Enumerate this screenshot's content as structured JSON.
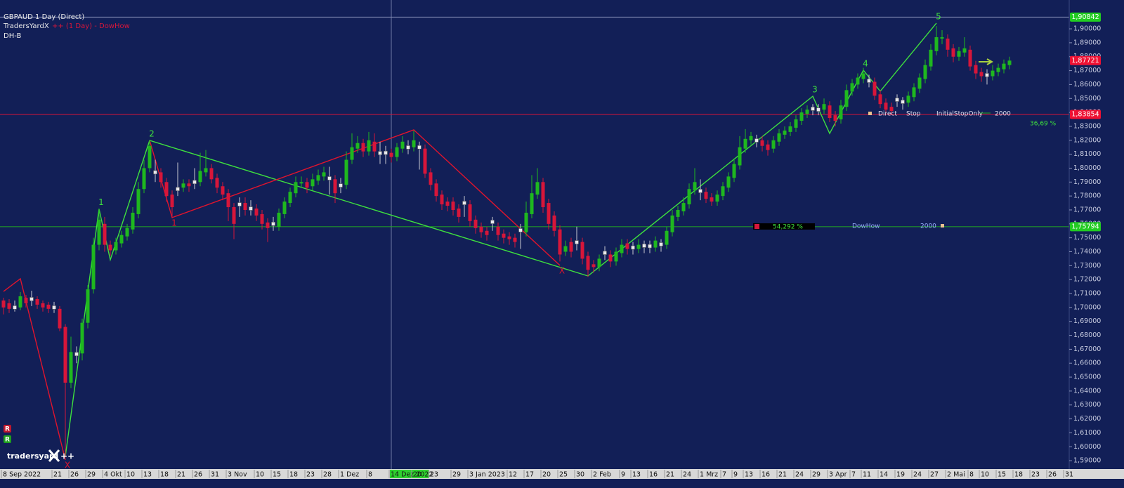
{
  "chart_data": {
    "type": "candlestick",
    "title": "GBPAUD 1 Day (Direct)",
    "indicator_name": "TradersYardX",
    "indicator_settings": "++ (1 Day) - DowHow",
    "subtitle": "DH-B",
    "logo": "tradersyard",
    "logo_mark": "++",
    "markers": [
      "R",
      "R"
    ],
    "categories": [
      "8 Sep 2022",
      null,
      null,
      null,
      null,
      null,
      null,
      null,
      null,
      "21",
      null,
      null,
      "26",
      null,
      null,
      "29",
      null,
      null,
      "4 Okt",
      null,
      null,
      null,
      "10",
      null,
      null,
      "13",
      null,
      null,
      "18",
      null,
      null,
      "21",
      null,
      null,
      "26",
      null,
      null,
      "31",
      null,
      null,
      "3 Nov",
      null,
      null,
      null,
      null,
      "10",
      null,
      null,
      "15",
      null,
      null,
      "18",
      null,
      null,
      "23",
      null,
      null,
      "28",
      null,
      null,
      "1 Dez",
      null,
      null,
      null,
      null,
      "8",
      null,
      null,
      null,
      "14 Dez 2022",
      null,
      null,
      null,
      "20",
      null,
      null,
      "23",
      null,
      null,
      null,
      "29",
      null,
      null,
      "3 Jan 2023",
      null,
      null,
      null,
      null,
      null,
      null,
      "12",
      null,
      null,
      "17",
      null,
      null,
      "20",
      null,
      null,
      "25",
      null,
      null,
      "30",
      null,
      null,
      "2 Feb",
      null,
      null,
      null,
      null,
      "9",
      null,
      "13",
      null,
      null,
      "16",
      null,
      null,
      "21",
      null,
      null,
      "24",
      null,
      null,
      "1 Mrz",
      null,
      null,
      null,
      "7",
      null,
      "9",
      null,
      "13",
      null,
      null,
      "16",
      null,
      null,
      "21",
      null,
      null,
      "24",
      null,
      null,
      "29",
      null,
      null,
      "3 Apr",
      null,
      null,
      null,
      "7",
      null,
      "11",
      null,
      null,
      "14",
      null,
      null,
      "19",
      null,
      null,
      "24",
      null,
      null,
      "27",
      null,
      null,
      "2 Mai",
      null,
      null,
      null,
      "8",
      null,
      "10",
      null,
      null,
      "15",
      null,
      null,
      "18",
      null,
      null,
      "23",
      null,
      null,
      "26",
      null,
      null,
      "31"
    ],
    "open": [
      1.705,
      1.703,
      1.7,
      1.7,
      1.707,
      1.706,
      1.706,
      1.703,
      1.702,
      1.7,
      1.699,
      1.686,
      1.646,
      1.6665,
      1.667,
      1.689,
      1.713,
      1.745,
      1.76,
      1.745,
      1.741,
      1.746,
      1.751,
      1.756,
      1.767,
      1.785,
      1.8,
      1.797,
      1.797,
      1.79,
      1.781,
      1.785,
      1.786,
      1.789,
      1.79,
      1.79,
      1.797,
      1.8,
      1.793,
      1.787,
      1.782,
      1.772,
      1.774,
      1.775,
      1.771,
      1.771,
      1.767,
      1.761,
      1.76,
      1.758,
      1.767,
      1.775,
      1.782,
      1.789,
      1.79,
      1.787,
      1.791,
      1.794,
      1.7927,
      1.792,
      1.7876,
      1.788,
      1.806,
      1.814,
      1.818,
      1.812,
      1.819,
      1.8108,
      1.811,
      1.811,
      1.808,
      1.814,
      1.8149,
      1.815,
      1.815,
      1.814,
      1.797,
      1.789,
      1.781,
      1.776,
      1.776,
      1.771,
      1.775,
      1.774,
      1.763,
      1.758,
      1.755,
      1.7614,
      1.758,
      1.753,
      1.751,
      1.75,
      1.7554,
      1.754,
      1.767,
      1.781,
      1.79,
      1.775,
      1.766,
      1.756,
      1.74,
      1.747,
      1.7468,
      1.747,
      1.737,
      1.731,
      1.729,
      1.7392,
      1.738,
      1.733,
      1.739,
      1.746,
      1.743,
      1.742,
      1.7443,
      1.744,
      1.743,
      1.7453,
      1.745,
      1.754,
      1.765,
      1.769,
      1.774,
      1.784,
      1.7836,
      1.783,
      1.779,
      1.776,
      1.78,
      1.786,
      1.793,
      1.802,
      1.814,
      1.82,
      1.8199,
      1.82,
      1.817,
      1.814,
      1.819,
      1.824,
      1.826,
      1.829,
      1.834,
      1.839,
      1.8426,
      1.842,
      1.842,
      1.845,
      1.838,
      1.835,
      1.844,
      1.855,
      1.86,
      1.864,
      1.8627,
      1.862,
      1.853,
      1.847,
      1.844,
      1.8491,
      1.8476,
      1.847,
      1.851,
      1.857,
      1.864,
      1.873,
      1.884,
      1.893,
      1.893,
      1.886,
      1.88,
      1.883,
      1.885,
      1.874,
      1.869,
      1.8668,
      1.866,
      1.869,
      1.871,
      1.874,
      null,
      null,
      null,
      null,
      null,
      null,
      null,
      null,
      null,
      null
    ],
    "high": [
      1.707,
      1.706,
      1.705,
      1.711,
      1.709,
      1.712,
      1.708,
      1.705,
      1.704,
      1.704,
      1.701,
      1.688,
      1.679,
      1.672,
      1.692,
      1.716,
      1.75,
      1.771,
      1.765,
      1.748,
      1.75,
      1.755,
      1.76,
      1.772,
      1.79,
      1.806,
      1.82,
      1.806,
      1.8,
      1.793,
      1.784,
      1.804,
      1.792,
      1.792,
      1.8,
      1.811,
      1.813,
      1.803,
      1.796,
      1.79,
      1.785,
      1.775,
      1.779,
      1.779,
      1.777,
      1.774,
      1.77,
      1.764,
      1.765,
      1.771,
      1.779,
      1.786,
      1.794,
      1.794,
      1.793,
      1.796,
      1.799,
      1.801,
      1.801,
      1.795,
      1.793,
      1.812,
      1.825,
      1.823,
      1.821,
      1.826,
      1.825,
      1.819,
      1.816,
      1.814,
      1.818,
      1.823,
      1.82,
      1.827,
      1.819,
      1.817,
      1.8,
      1.792,
      1.784,
      1.779,
      1.779,
      1.774,
      1.78,
      1.777,
      1.766,
      1.761,
      1.758,
      1.765,
      1.761,
      1.756,
      1.754,
      1.753,
      1.76,
      1.776,
      1.795,
      1.8,
      1.793,
      1.778,
      1.769,
      1.759,
      1.748,
      1.75,
      1.758,
      1.75,
      1.74,
      1.734,
      1.738,
      1.744,
      1.741,
      1.743,
      1.749,
      1.749,
      1.747,
      1.749,
      1.748,
      1.748,
      1.751,
      1.749,
      1.758,
      1.77,
      1.773,
      1.779,
      1.789,
      1.8,
      1.792,
      1.786,
      1.782,
      1.784,
      1.79,
      1.797,
      1.807,
      1.823,
      1.828,
      1.826,
      1.824,
      1.823,
      1.82,
      1.823,
      1.828,
      1.83,
      1.833,
      1.838,
      1.843,
      1.845,
      1.846,
      1.846,
      1.85,
      1.848,
      1.841,
      1.849,
      1.86,
      1.864,
      1.868,
      1.872,
      1.867,
      1.865,
      1.856,
      1.85,
      1.847,
      1.853,
      1.851,
      1.855,
      1.861,
      1.868,
      1.878,
      1.889,
      1.902,
      1.899,
      1.896,
      1.889,
      1.887,
      1.894,
      1.888,
      1.877,
      1.872,
      1.871,
      1.874,
      1.875,
      1.878,
      1.88,
      null,
      null,
      null,
      null,
      null,
      null,
      null,
      null,
      null,
      null
    ],
    "low": [
      1.695,
      1.696,
      1.697,
      1.698,
      1.7,
      1.701,
      1.699,
      1.697,
      1.696,
      1.696,
      1.683,
      1.5935,
      1.642,
      1.66,
      1.662,
      1.685,
      1.71,
      1.741,
      1.74,
      1.737,
      1.738,
      1.743,
      1.748,
      1.753,
      1.764,
      1.782,
      1.797,
      1.79,
      1.786,
      1.776,
      1.764,
      1.78,
      1.783,
      1.783,
      1.785,
      1.787,
      1.794,
      1.789,
      1.782,
      1.777,
      1.762,
      1.749,
      1.765,
      1.766,
      1.766,
      1.762,
      1.756,
      1.747,
      1.755,
      1.755,
      1.764,
      1.772,
      1.779,
      1.786,
      1.782,
      1.784,
      1.788,
      1.791,
      1.781,
      1.775,
      1.782,
      1.785,
      1.803,
      1.811,
      1.808,
      1.809,
      1.808,
      1.803,
      1.803,
      1.804,
      1.805,
      1.811,
      1.81,
      1.812,
      1.799,
      1.793,
      1.784,
      1.776,
      1.77,
      1.769,
      1.766,
      1.761,
      1.765,
      1.758,
      1.753,
      1.75,
      1.748,
      1.755,
      1.748,
      1.746,
      1.745,
      1.743,
      1.742,
      1.751,
      1.764,
      1.778,
      1.768,
      1.756,
      1.751,
      1.733,
      1.737,
      1.736,
      1.741,
      1.731,
      1.722,
      1.725,
      1.726,
      1.734,
      1.729,
      1.73,
      1.736,
      1.738,
      1.738,
      1.739,
      1.739,
      1.739,
      1.74,
      1.74,
      1.742,
      1.751,
      1.762,
      1.766,
      1.771,
      1.781,
      1.777,
      1.775,
      1.773,
      1.773,
      1.777,
      1.783,
      1.79,
      1.799,
      1.811,
      1.817,
      1.815,
      1.812,
      1.809,
      1.811,
      1.816,
      1.821,
      1.823,
      1.826,
      1.831,
      1.836,
      1.838,
      1.838,
      1.839,
      1.833,
      1.83,
      1.832,
      1.841,
      1.852,
      1.857,
      1.861,
      1.858,
      1.849,
      1.843,
      1.839,
      1.838,
      1.844,
      1.842,
      1.844,
      1.848,
      1.854,
      1.861,
      1.87,
      1.881,
      1.889,
      1.88,
      1.876,
      1.877,
      1.88,
      1.87,
      1.864,
      1.862,
      1.86,
      1.863,
      1.866,
      1.868,
      1.871,
      null,
      null,
      null,
      null,
      null,
      null,
      null,
      null,
      null,
      null
    ],
    "close": [
      1.7,
      1.699,
      1.7,
      1.708,
      1.703,
      1.706,
      1.702,
      1.7,
      1.699,
      1.7,
      1.685,
      1.646,
      1.668,
      1.6665,
      1.689,
      1.713,
      1.745,
      1.763,
      1.745,
      1.741,
      1.747,
      1.752,
      1.757,
      1.768,
      1.785,
      1.8,
      1.816,
      1.797,
      1.79,
      1.78,
      1.772,
      1.785,
      1.789,
      1.787,
      1.79,
      1.798,
      1.8,
      1.792,
      1.786,
      1.781,
      1.772,
      1.76,
      1.774,
      1.77,
      1.771,
      1.766,
      1.76,
      1.757,
      1.76,
      1.768,
      1.776,
      1.783,
      1.79,
      1.79,
      1.786,
      1.792,
      1.795,
      1.797,
      1.7927,
      1.782,
      1.7876,
      1.806,
      1.815,
      1.818,
      1.812,
      1.82,
      1.812,
      1.8108,
      1.811,
      1.808,
      1.815,
      1.819,
      1.8149,
      1.82,
      1.815,
      1.796,
      1.788,
      1.78,
      1.774,
      1.773,
      1.77,
      1.765,
      1.775,
      1.762,
      1.757,
      1.754,
      1.752,
      1.7614,
      1.752,
      1.75,
      1.749,
      1.747,
      1.7554,
      1.768,
      1.782,
      1.79,
      1.772,
      1.76,
      1.755,
      1.738,
      1.744,
      1.74,
      1.7468,
      1.735,
      1.727,
      1.729,
      1.735,
      1.7392,
      1.733,
      1.74,
      1.745,
      1.742,
      1.743,
      1.745,
      1.7443,
      1.744,
      1.748,
      1.7453,
      1.755,
      1.766,
      1.77,
      1.775,
      1.785,
      1.79,
      1.7836,
      1.778,
      1.776,
      1.781,
      1.787,
      1.794,
      1.803,
      1.815,
      1.821,
      1.823,
      1.8199,
      1.816,
      1.813,
      1.82,
      1.825,
      1.827,
      1.83,
      1.835,
      1.84,
      1.842,
      1.8426,
      1.842,
      1.846,
      1.836,
      1.834,
      1.845,
      1.856,
      1.861,
      1.865,
      1.868,
      1.8627,
      1.852,
      1.846,
      1.842,
      1.841,
      1.8491,
      1.8476,
      1.852,
      1.858,
      1.865,
      1.874,
      1.885,
      1.894,
      1.894,
      1.885,
      1.88,
      1.884,
      1.886,
      1.873,
      1.868,
      1.866,
      1.8668,
      1.87,
      1.872,
      1.875,
      1.8772,
      null,
      null,
      null,
      null,
      null,
      null,
      null,
      null,
      null,
      null
    ],
    "up_color": "#1fb81f",
    "down_color": "#d7163a",
    "doji_color": "#e8e8ee",
    "ylim": [
      1.584,
      1.9207
    ],
    "yticks": [
      {
        "value": 1.59,
        "label": "1,59000"
      },
      {
        "value": 1.6,
        "label": "1,60000"
      },
      {
        "value": 1.61,
        "label": "1,61000"
      },
      {
        "value": 1.62,
        "label": "1,62000"
      },
      {
        "value": 1.63,
        "label": "1,63000"
      },
      {
        "value": 1.64,
        "label": "1,64000"
      },
      {
        "value": 1.65,
        "label": "1,65000"
      },
      {
        "value": 1.66,
        "label": "1,66000"
      },
      {
        "value": 1.67,
        "label": "1,67000"
      },
      {
        "value": 1.68,
        "label": "1,68000"
      },
      {
        "value": 1.69,
        "label": "1,69000"
      },
      {
        "value": 1.7,
        "label": "1,70000"
      },
      {
        "value": 1.71,
        "label": "1,71000"
      },
      {
        "value": 1.72,
        "label": "1,72000"
      },
      {
        "value": 1.73,
        "label": "1,73000"
      },
      {
        "value": 1.74,
        "label": "1,74000"
      },
      {
        "value": 1.75,
        "label": "1,75000"
      },
      {
        "value": 1.76,
        "label": "1,76000"
      },
      {
        "value": 1.77,
        "label": "1,77000"
      },
      {
        "value": 1.78,
        "label": "1,78000"
      },
      {
        "value": 1.79,
        "label": "1,79000"
      },
      {
        "value": 1.8,
        "label": "1,80000"
      },
      {
        "value": 1.81,
        "label": "1,81000"
      },
      {
        "value": 1.82,
        "label": "1,82000"
      },
      {
        "value": 1.83,
        "label": "1,83000"
      },
      {
        "value": 1.84,
        "label": "1,84000"
      },
      {
        "value": 1.85,
        "label": "1,85000"
      },
      {
        "value": 1.86,
        "label": "1,86000"
      },
      {
        "value": 1.87,
        "label": "1,87000"
      },
      {
        "value": 1.88,
        "label": "1,88000"
      },
      {
        "value": 1.89,
        "label": "1,89000"
      },
      {
        "value": 1.9,
        "label": "1,90000"
      }
    ],
    "grid": false,
    "levels": [
      {
        "value": 1.90842,
        "label": "1,90842",
        "color": "#22cc22",
        "line": "#8890b8"
      },
      {
        "value": 1.87721,
        "label": "1,87721",
        "color": "#ee1133",
        "line": null
      },
      {
        "value": 1.83854,
        "label": "1,83854",
        "color": "#ee1133",
        "line": "#d7163a"
      },
      {
        "value": 1.75794,
        "label": "1,75794",
        "color": "#22cc22",
        "line": "#22aa22"
      }
    ],
    "waves": [
      {
        "color": "#3ee03e",
        "points": [
          [
            11,
            1.5931
          ],
          [
            17,
            1.7707
          ],
          [
            19,
            1.7342
          ],
          [
            26,
            1.8199
          ],
          [
            104,
            1.7226
          ],
          [
            144,
            1.8516
          ],
          [
            147,
            1.8249
          ],
          [
            153,
            1.8703
          ],
          [
            156,
            1.8552
          ],
          [
            166,
            1.9041
          ]
        ],
        "labels": [
          null,
          "1",
          null,
          "2",
          null,
          "3",
          null,
          "4",
          null,
          "5"
        ]
      },
      {
        "color": "#e0142d",
        "points": [
          [
            0,
            1.7115
          ],
          [
            3,
            1.7206
          ],
          [
            11,
            1.5906
          ]
        ],
        "labels": [
          null,
          null,
          "X"
        ]
      },
      {
        "color": "#e0142d",
        "points": [
          [
            26,
            1.8199
          ],
          [
            30,
            1.7645
          ],
          [
            73,
            1.8275
          ],
          [
            99,
            1.7302
          ]
        ],
        "labels": [
          null,
          "1",
          null,
          "X"
        ]
      }
    ],
    "annotations": {
      "direct": "Direct",
      "stop": "Stop",
      "stop_type": "InitialStopOnly",
      "stop_size": "2000",
      "stop_pct": "36,69 %",
      "dow_pct": "54,292 %",
      "dow_name": "DowHow",
      "dow_size": "2000"
    }
  }
}
